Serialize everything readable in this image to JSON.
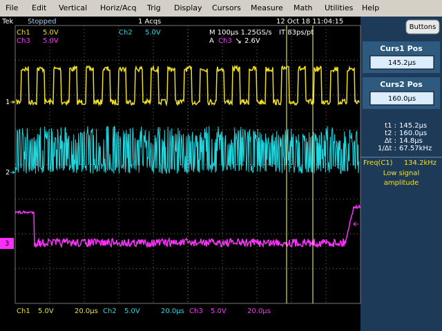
{
  "menu": [
    "File",
    "Edit",
    "Vertical",
    "Horiz/Acq",
    "Trig",
    "Display",
    "Cursors",
    "Measure",
    "Math",
    "Utilities",
    "Help"
  ],
  "status": {
    "brand": "Tek",
    "state": "Stopped",
    "acqs": "1 Acqs",
    "datetime": "12 Oct 18 11:04:15"
  },
  "overlay": {
    "ch1": "Ch1",
    "ch1_scale": "5.0V",
    "ch2": "Ch2",
    "ch2_scale": "5.0V",
    "ch3": "Ch3",
    "ch3_scale": "5.0V",
    "timebase": "M 100µs 1.25GS/s",
    "resolution": "IT 83ps/pt",
    "trigger_mode": "A",
    "trigger_source": "Ch3",
    "trigger_level": "2.6V"
  },
  "markers": [
    "1",
    "2",
    "3"
  ],
  "panel": {
    "button": "Buttons",
    "cursor1": {
      "label": "Curs1 Pos",
      "value": "145.2µs"
    },
    "cursor2": {
      "label": "Curs2 Pos",
      "value": "160.0µs"
    },
    "readouts": [
      {
        "label": "t1 :",
        "value": "145.2µs"
      },
      {
        "label": "t2 :",
        "value": "160.0µs"
      },
      {
        "label": "Δt :",
        "value": "14.8µs"
      },
      {
        "label": "1/Δt :",
        "value": "67.57kHz"
      }
    ],
    "freq": {
      "label": "Freq(C1)",
      "value": "134.2kHz",
      "note1": "Low signal",
      "note2": "amplitude"
    }
  },
  "bottom": [
    {
      "channel": "Ch1",
      "scale": "5.0V",
      "time": "20.0µs"
    },
    {
      "channel": "Ch2",
      "scale": "5.0V",
      "time": "20.0µs"
    },
    {
      "channel": "Ch3",
      "scale": "5.0V",
      "time": "20.0µs"
    }
  ]
}
